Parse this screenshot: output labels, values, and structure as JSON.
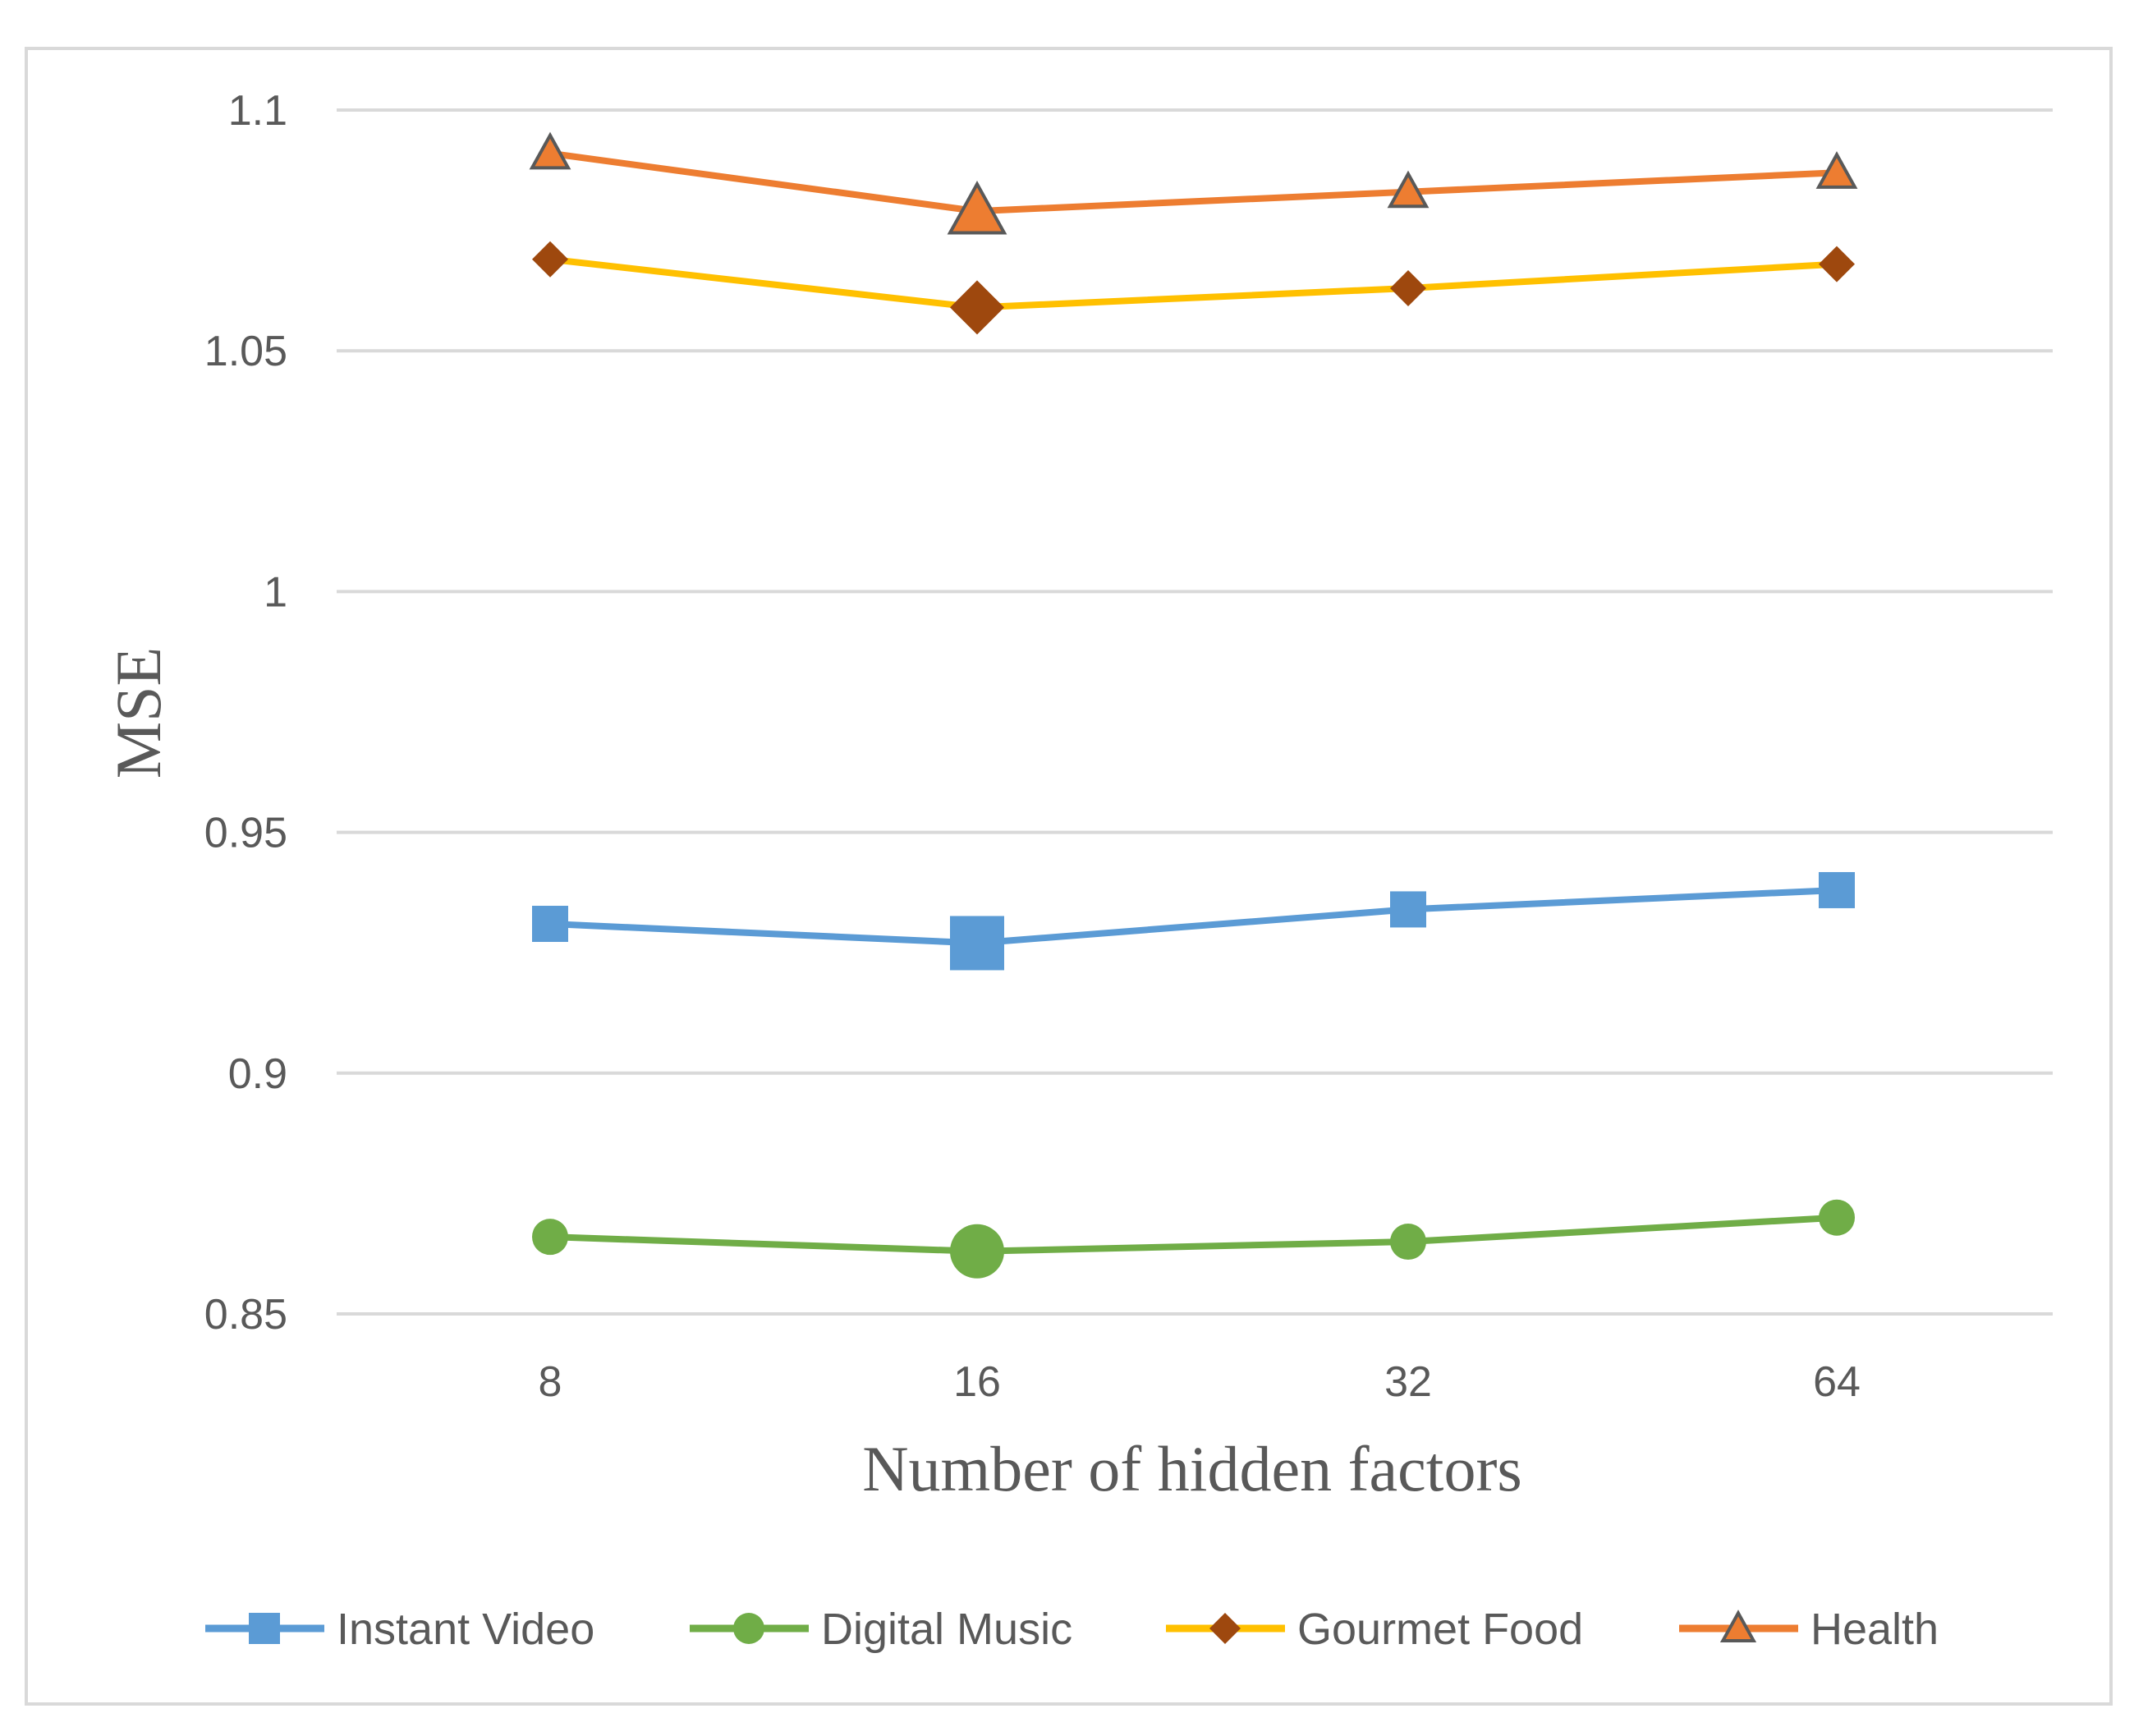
{
  "chart_data": {
    "type": "line",
    "title": "",
    "xlabel": "Number of hidden factors",
    "ylabel": "MSE",
    "categories": [
      "8",
      "16",
      "32",
      "64"
    ],
    "ylim": [
      0.85,
      1.1
    ],
    "yticks": [
      0.85,
      0.9,
      0.95,
      1,
      1.05,
      1.1
    ],
    "ytick_labels": [
      "0.85",
      "0.9",
      "0.95",
      "1",
      "1.05",
      "1.1"
    ],
    "grid": true,
    "legend_position": "bottom",
    "highlight_index": 1,
    "series": [
      {
        "name": "Instant Video",
        "color": "#5b9bd5",
        "marker": "square",
        "values": [
          0.931,
          0.927,
          0.934,
          0.938
        ]
      },
      {
        "name": "Digital Music",
        "color": "#70ad47",
        "marker": "circle",
        "values": [
          0.866,
          0.863,
          0.865,
          0.87
        ]
      },
      {
        "name": "Gourmet Food",
        "color": "#ffc000",
        "marker_color": "#9e480e",
        "marker": "diamond",
        "values": [
          1.069,
          1.059,
          1.063,
          1.068
        ]
      },
      {
        "name": "Health",
        "color": "#ed7d31",
        "marker": "triangle",
        "values": [
          1.091,
          1.079,
          1.083,
          1.087
        ]
      }
    ]
  }
}
